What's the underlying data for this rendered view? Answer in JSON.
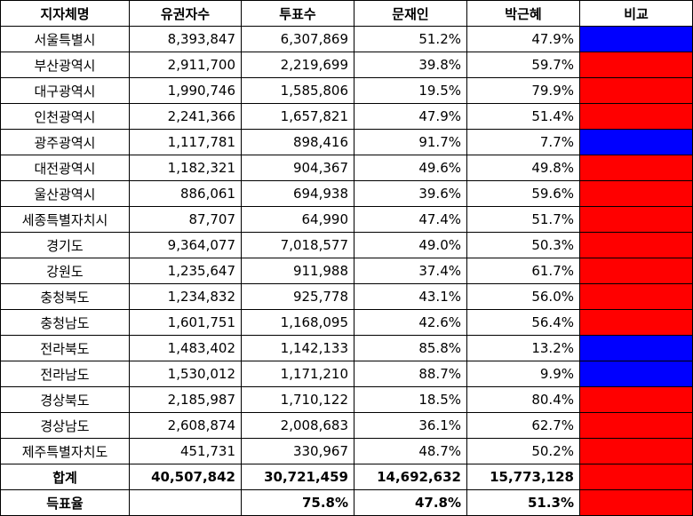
{
  "colors": {
    "moon": "#0000ff",
    "park": "#ff0000"
  },
  "headers": [
    "지자체명",
    "유권자수",
    "투표수",
    "문재인",
    "박근혜",
    "비교"
  ],
  "rows": [
    {
      "name": "서울특별시",
      "voters": "8,393,847",
      "votes": "6,307,869",
      "moon": "51.2%",
      "park": "47.9%",
      "winner": "moon"
    },
    {
      "name": "부산광역시",
      "voters": "2,911,700",
      "votes": "2,219,699",
      "moon": "39.8%",
      "park": "59.7%",
      "winner": "park"
    },
    {
      "name": "대구광역시",
      "voters": "1,990,746",
      "votes": "1,585,806",
      "moon": "19.5%",
      "park": "79.9%",
      "winner": "park"
    },
    {
      "name": "인천광역시",
      "voters": "2,241,366",
      "votes": "1,657,821",
      "moon": "47.9%",
      "park": "51.4%",
      "winner": "park"
    },
    {
      "name": "광주광역시",
      "voters": "1,117,781",
      "votes": "898,416",
      "moon": "91.7%",
      "park": "7.7%",
      "winner": "moon"
    },
    {
      "name": "대전광역시",
      "voters": "1,182,321",
      "votes": "904,367",
      "moon": "49.6%",
      "park": "49.8%",
      "winner": "park"
    },
    {
      "name": "울산광역시",
      "voters": "886,061",
      "votes": "694,938",
      "moon": "39.6%",
      "park": "59.6%",
      "winner": "park"
    },
    {
      "name": "세종특별자치시",
      "voters": "87,707",
      "votes": "64,990",
      "moon": "47.4%",
      "park": "51.7%",
      "winner": "park"
    },
    {
      "name": "경기도",
      "voters": "9,364,077",
      "votes": "7,018,577",
      "moon": "49.0%",
      "park": "50.3%",
      "winner": "park"
    },
    {
      "name": "강원도",
      "voters": "1,235,647",
      "votes": "911,988",
      "moon": "37.4%",
      "park": "61.7%",
      "winner": "park"
    },
    {
      "name": "충청북도",
      "voters": "1,234,832",
      "votes": "925,778",
      "moon": "43.1%",
      "park": "56.0%",
      "winner": "park"
    },
    {
      "name": "충청남도",
      "voters": "1,601,751",
      "votes": "1,168,095",
      "moon": "42.6%",
      "park": "56.4%",
      "winner": "park"
    },
    {
      "name": "전라북도",
      "voters": "1,483,402",
      "votes": "1,142,133",
      "moon": "85.8%",
      "park": "13.2%",
      "winner": "moon"
    },
    {
      "name": "전라남도",
      "voters": "1,530,012",
      "votes": "1,171,210",
      "moon": "88.7%",
      "park": "9.9%",
      "winner": "moon"
    },
    {
      "name": "경상북도",
      "voters": "2,185,987",
      "votes": "1,710,122",
      "moon": "18.5%",
      "park": "80.4%",
      "winner": "park"
    },
    {
      "name": "경상남도",
      "voters": "2,608,874",
      "votes": "2,008,683",
      "moon": "36.1%",
      "park": "62.7%",
      "winner": "park"
    },
    {
      "name": "제주특별자치도",
      "voters": "451,731",
      "votes": "330,967",
      "moon": "48.7%",
      "park": "50.2%",
      "winner": "park"
    }
  ],
  "total": {
    "name": "합계",
    "voters": "40,507,842",
    "votes": "30,721,459",
    "moon": "14,692,632",
    "park": "15,773,128",
    "winner": "park"
  },
  "rate": {
    "name": "득표율",
    "voters": "",
    "votes": "75.8%",
    "moon": "47.8%",
    "park": "51.3%",
    "winner": "park"
  }
}
